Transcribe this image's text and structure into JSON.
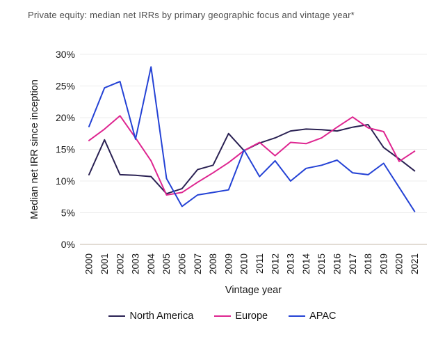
{
  "title": "Private equity: median net IRRs by primary geographic focus and vintage year*",
  "chart_data": {
    "type": "line",
    "x": [
      2000,
      2001,
      2002,
      2003,
      2004,
      2005,
      2006,
      2007,
      2008,
      2009,
      2010,
      2011,
      2012,
      2013,
      2014,
      2015,
      2016,
      2017,
      2018,
      2019,
      2020,
      2021
    ],
    "series": [
      {
        "name": "North America",
        "color": "#2a2153",
        "values": [
          11.0,
          16.5,
          11.0,
          10.9,
          10.7,
          8.0,
          8.8,
          11.8,
          12.5,
          17.5,
          14.8,
          16.0,
          16.8,
          17.9,
          18.2,
          18.1,
          17.9,
          18.5,
          18.9,
          15.3,
          13.5,
          11.6
        ]
      },
      {
        "name": "Europe",
        "color": "#de2590",
        "values": [
          16.4,
          18.2,
          20.3,
          16.8,
          13.2,
          7.8,
          8.2,
          9.8,
          11.3,
          12.9,
          14.8,
          16.1,
          14.0,
          16.1,
          15.9,
          16.8,
          18.5,
          20.1,
          18.4,
          17.8,
          13.1,
          14.7
        ]
      },
      {
        "name": "APAC",
        "color": "#2442d5",
        "values": [
          18.6,
          24.7,
          25.7,
          16.6,
          28.0,
          10.4,
          6.0,
          7.8,
          8.2,
          8.6,
          14.9,
          10.7,
          13.2,
          10.0,
          12.0,
          12.5,
          13.3,
          11.3,
          11.0,
          12.8,
          9.0,
          5.2
        ]
      }
    ],
    "xlabel": "Vintage year",
    "ylabel": "Median net IRR since inception",
    "ylim": [
      0,
      30
    ],
    "ytick_step": 5,
    "ytick_suffix": "%",
    "ytick_labels": [
      "0%",
      "5%",
      "10%",
      "15%",
      "20%",
      "25%",
      "30%"
    ],
    "grid": "horizontal-only",
    "legend_position": "bottom"
  },
  "palette": {
    "grid_line": "#ececec",
    "zero_line": "#d8d0c6",
    "tick_text": "#161616",
    "axis_title_text": "#161616",
    "title_text": "#4d4d4d"
  }
}
